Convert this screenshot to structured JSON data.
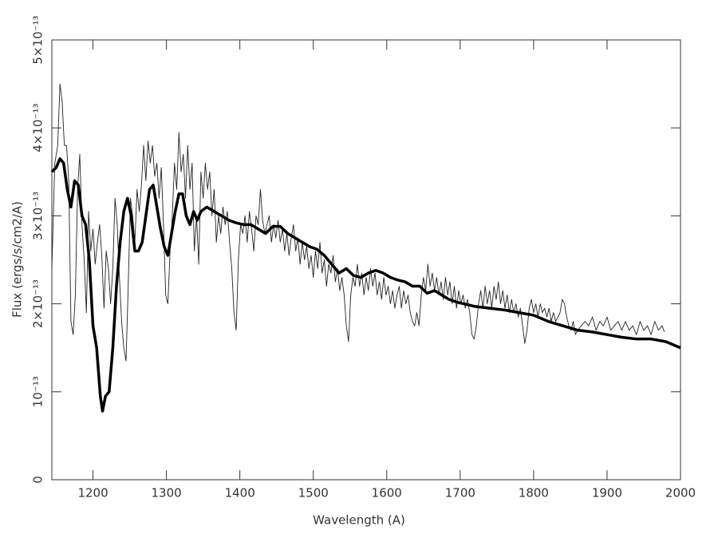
{
  "chart_data": {
    "type": "line",
    "xlabel": "Wavelength (A)",
    "ylabel": "Flux (ergs/s/cm2/A)",
    "xlim": [
      1144,
      2000
    ],
    "ylim": [
      0,
      5e-13
    ],
    "xticks": [
      1200,
      1300,
      1400,
      1500,
      1600,
      1700,
      1800,
      1900,
      2000
    ],
    "yticks": [
      0,
      {
        "value": 1e-13,
        "label": "10⁻¹³"
      },
      {
        "value": 2e-13,
        "label": "2×10⁻¹³"
      },
      {
        "value": 3e-13,
        "label": "3×10⁻¹³"
      },
      {
        "value": 4e-13,
        "label": "4×10⁻¹³"
      },
      {
        "value": 5e-13,
        "label": "5×10⁻¹³"
      }
    ],
    "series": [
      {
        "color": "#222222",
        "width": 0.9,
        "x": [
          1144,
          1148,
          1152,
          1155,
          1158,
          1161,
          1164,
          1167,
          1170,
          1173,
          1176,
          1179,
          1182,
          1185,
          1188,
          1191,
          1194,
          1197,
          1200,
          1203,
          1206,
          1209,
          1212,
          1215,
          1218,
          1221,
          1224,
          1227,
          1230,
          1233,
          1236,
          1239,
          1242,
          1245,
          1248,
          1251,
          1254,
          1257,
          1260,
          1263,
          1266,
          1269,
          1272,
          1275,
          1278,
          1281,
          1284,
          1287,
          1290,
          1293,
          1296,
          1299,
          1302,
          1305,
          1308,
          1311,
          1314,
          1317,
          1320,
          1323,
          1326,
          1329,
          1332,
          1335,
          1338,
          1341,
          1344,
          1347,
          1350,
          1353,
          1356,
          1359,
          1362,
          1365,
          1368,
          1371,
          1374,
          1377,
          1380,
          1383,
          1386,
          1389,
          1392,
          1395,
          1398,
          1401,
          1404,
          1407,
          1410,
          1413,
          1416,
          1419,
          1422,
          1425,
          1428,
          1431,
          1434,
          1437,
          1440,
          1443,
          1446,
          1449,
          1452,
          1455,
          1458,
          1461,
          1464,
          1467,
          1470,
          1473,
          1476,
          1479,
          1482,
          1485,
          1488,
          1491,
          1494,
          1497,
          1500,
          1503,
          1506,
          1509,
          1512,
          1515,
          1518,
          1521,
          1524,
          1527,
          1530,
          1533,
          1536,
          1539,
          1542,
          1545,
          1548,
          1551,
          1554,
          1557,
          1560,
          1563,
          1566,
          1569,
          1572,
          1575,
          1578,
          1581,
          1584,
          1587,
          1590,
          1593,
          1596,
          1599,
          1602,
          1605,
          1608,
          1611,
          1614,
          1617,
          1620,
          1623,
          1626,
          1629,
          1632,
          1635,
          1638,
          1641,
          1644,
          1647,
          1650,
          1653,
          1656,
          1659,
          1662,
          1665,
          1668,
          1671,
          1674,
          1677,
          1680,
          1683,
          1686,
          1689,
          1692,
          1695,
          1698,
          1701,
          1704,
          1707,
          1710,
          1713,
          1716,
          1719,
          1722,
          1725,
          1728,
          1731,
          1734,
          1737,
          1740,
          1743,
          1746,
          1749,
          1752,
          1755,
          1758,
          1761,
          1764,
          1767,
          1770,
          1773,
          1776,
          1779,
          1782,
          1785,
          1788,
          1791,
          1794,
          1797,
          1800,
          1803,
          1806,
          1809,
          1812,
          1815,
          1818,
          1821,
          1824,
          1827,
          1830,
          1833,
          1836,
          1839,
          1842,
          1845,
          1848,
          1851,
          1854,
          1857,
          1860,
          1865,
          1870,
          1875,
          1880,
          1885,
          1890,
          1895,
          1900,
          1905,
          1910,
          1915,
          1920,
          1925,
          1930,
          1935,
          1940,
          1945,
          1950,
          1955,
          1960,
          1965,
          1970,
          1975,
          1978
        ],
        "values": [
          2.4e-13,
          3.6e-13,
          3.8e-13,
          4.5e-13,
          4.3e-13,
          3.8e-13,
          3.8e-13,
          3.4e-13,
          1.8e-13,
          1.65e-13,
          2.1e-13,
          3.3e-13,
          3.7e-13,
          2.9e-13,
          2.5e-13,
          1.9e-13,
          3.05e-13,
          2.6e-13,
          2.85e-13,
          2.45e-13,
          2.7e-13,
          2.9e-13,
          2.55e-13,
          1.95e-13,
          2.6e-13,
          2.4e-13,
          2e-13,
          2.4e-13,
          3.2e-13,
          2.9e-13,
          2.3e-13,
          1.8e-13,
          1.5e-13,
          1.35e-13,
          2.2e-13,
          3.2e-13,
          3e-13,
          2.7e-13,
          3.3e-13,
          3.05e-13,
          3.35e-13,
          3.8e-13,
          3.4e-13,
          3.85e-13,
          3.6e-13,
          3.8e-13,
          3.45e-13,
          3.6e-13,
          3.2e-13,
          3.55e-13,
          2.9e-13,
          2.1e-13,
          2e-13,
          2.6e-13,
          3e-13,
          3.6e-13,
          3.3e-13,
          3.95e-13,
          3.5e-13,
          3.7e-13,
          3.2e-13,
          3.8e-13,
          3.3e-13,
          3.6e-13,
          2.6e-13,
          3e-13,
          2.45e-13,
          3.5e-13,
          3.2e-13,
          3.6e-13,
          3.3e-13,
          3.5e-13,
          3e-13,
          3.3e-13,
          2.7e-13,
          3e-13,
          2.8e-13,
          3.1e-13,
          2.9e-13,
          3.05e-13,
          2.7e-13,
          2.4e-13,
          1.9e-13,
          1.7e-13,
          2.5e-13,
          2.9e-13,
          2.8e-13,
          3e-13,
          2.7e-13,
          3.05e-13,
          2.85e-13,
          2.6e-13,
          3e-13,
          2.9e-13,
          3.3e-13,
          2.95e-13,
          2.8e-13,
          2.9e-13,
          3e-13,
          2.7e-13,
          2.9e-13,
          2.75e-13,
          2.95e-13,
          2.7e-13,
          2.85e-13,
          2.6e-13,
          2.8e-13,
          2.55e-13,
          2.75e-13,
          2.9e-13,
          2.6e-13,
          2.75e-13,
          2.45e-13,
          2.7e-13,
          2.5e-13,
          2.65e-13,
          2.4e-13,
          2.55e-13,
          2.3e-13,
          2.6e-13,
          2.4e-13,
          2.7e-13,
          2.35e-13,
          2.5e-13,
          2.2e-13,
          2.45e-13,
          2.35e-13,
          2.55e-13,
          2.25e-13,
          2.4e-13,
          2.15e-13,
          2.3e-13,
          2.1e-13,
          1.75e-13,
          1.57e-13,
          2.1e-13,
          2.3e-13,
          2.2e-13,
          2.45e-13,
          2.2e-13,
          2.35e-13,
          2.1e-13,
          2.3e-13,
          2.15e-13,
          2.4e-13,
          2.2e-13,
          2.35e-13,
          2.1e-13,
          2.25e-13,
          2.05e-13,
          2.3e-13,
          2.1e-13,
          2.2e-13,
          2e-13,
          2.15e-13,
          1.95e-13,
          2.1e-13,
          2.2e-13,
          1.95e-13,
          2.15e-13,
          2e-13,
          2.1e-13,
          1.9e-13,
          1.8e-13,
          1.75e-13,
          1.9e-13,
          1.75e-13,
          2.1e-13,
          2.3e-13,
          2.15e-13,
          2.45e-13,
          2.2e-13,
          2.35e-13,
          2.15e-13,
          2.3e-13,
          2.1e-13,
          2.25e-13,
          2.05e-13,
          2.3e-13,
          2.1e-13,
          2.25e-13,
          2e-13,
          2.2e-13,
          1.95e-13,
          2.15e-13,
          2e-13,
          2.1e-13,
          1.95e-13,
          2.05e-13,
          1.9e-13,
          1.65e-13,
          1.6e-13,
          1.75e-13,
          2e-13,
          2.15e-13,
          1.95e-13,
          2.2e-13,
          2e-13,
          2.15e-13,
          1.95e-13,
          2.2e-13,
          2.05e-13,
          2.25e-13,
          2e-13,
          2.15e-13,
          1.95e-13,
          2.1e-13,
          1.9e-13,
          2.05e-13,
          1.9e-13,
          2e-13,
          1.85e-13,
          1.95e-13,
          1.75e-13,
          1.55e-13,
          1.7e-13,
          1.95e-13,
          2.05e-13,
          1.9e-13,
          2e-13,
          1.85e-13,
          2e-13,
          1.9e-13,
          1.95e-13,
          1.85e-13,
          1.95e-13,
          1.8e-13,
          1.9e-13,
          1.8e-13,
          1.85e-13,
          1.9e-13,
          2.05e-13,
          2e-13,
          1.85e-13,
          1.75e-13,
          1.7e-13,
          1.8e-13,
          1.65e-13,
          1.7e-13,
          1.75e-13,
          1.8e-13,
          1.75e-13,
          1.85e-13,
          1.7e-13,
          1.8e-13,
          1.75e-13,
          1.85e-13,
          1.7e-13,
          1.75e-13,
          1.8e-13,
          1.7e-13,
          1.8e-13,
          1.7e-13,
          1.75e-13,
          1.65e-13,
          1.8e-13,
          1.7e-13,
          1.75e-13,
          1.65e-13,
          1.8e-13,
          1.7e-13,
          1.75e-13,
          1.68e-13
        ]
      },
      {
        "color": "#000000",
        "width": 3.5,
        "x": [
          1144,
          1150,
          1155,
          1160,
          1165,
          1170,
          1175,
          1180,
          1185,
          1190,
          1195,
          1200,
          1205,
          1210,
          1213,
          1217,
          1222,
          1227,
          1232,
          1237,
          1242,
          1247,
          1252,
          1257,
          1262,
          1267,
          1272,
          1277,
          1282,
          1287,
          1292,
          1297,
          1302,
          1307,
          1312,
          1317,
          1322,
          1327,
          1332,
          1337,
          1342,
          1347,
          1355,
          1365,
          1375,
          1385,
          1395,
          1405,
          1415,
          1425,
          1435,
          1445,
          1455,
          1465,
          1475,
          1485,
          1495,
          1505,
          1515,
          1525,
          1535,
          1545,
          1555,
          1565,
          1575,
          1585,
          1595,
          1605,
          1615,
          1625,
          1635,
          1645,
          1655,
          1665,
          1675,
          1685,
          1695,
          1705,
          1720,
          1740,
          1760,
          1780,
          1800,
          1820,
          1840,
          1860,
          1880,
          1900,
          1920,
          1940,
          1960,
          1980,
          2000
        ],
        "values": [
          3.5e-13,
          3.55e-13,
          3.65e-13,
          3.6e-13,
          3.3e-13,
          3.1e-13,
          3.4e-13,
          3.35e-13,
          3e-13,
          2.9e-13,
          2.5e-13,
          1.75e-13,
          1.5e-13,
          9.5e-14,
          7.8e-14,
          9.5e-14,
          1e-13,
          1.5e-13,
          2.2e-13,
          2.7e-13,
          3.05e-13,
          3.2e-13,
          3e-13,
          2.6e-13,
          2.6e-13,
          2.7e-13,
          3e-13,
          3.3e-13,
          3.35e-13,
          3.1e-13,
          2.85e-13,
          2.65e-13,
          2.55e-13,
          2.8e-13,
          3.05e-13,
          3.25e-13,
          3.25e-13,
          3e-13,
          2.9e-13,
          3.05e-13,
          2.95e-13,
          3.05e-13,
          3.1e-13,
          3.05e-13,
          3e-13,
          2.95e-13,
          2.92e-13,
          2.9e-13,
          2.9e-13,
          2.85e-13,
          2.8e-13,
          2.88e-13,
          2.88e-13,
          2.8e-13,
          2.75e-13,
          2.7e-13,
          2.65e-13,
          2.62e-13,
          2.55e-13,
          2.45e-13,
          2.35e-13,
          2.4e-13,
          2.32e-13,
          2.3e-13,
          2.35e-13,
          2.38e-13,
          2.35e-13,
          2.3e-13,
          2.27e-13,
          2.25e-13,
          2.2e-13,
          2.2e-13,
          2.12e-13,
          2.15e-13,
          2.1e-13,
          2.05e-13,
          2.02e-13,
          2e-13,
          1.97e-13,
          1.95e-13,
          1.93e-13,
          1.9e-13,
          1.87e-13,
          1.8e-13,
          1.75e-13,
          1.7e-13,
          1.68e-13,
          1.65e-13,
          1.62e-13,
          1.6e-13,
          1.6e-13,
          1.57e-13,
          1.5e-13
        ]
      }
    ]
  }
}
